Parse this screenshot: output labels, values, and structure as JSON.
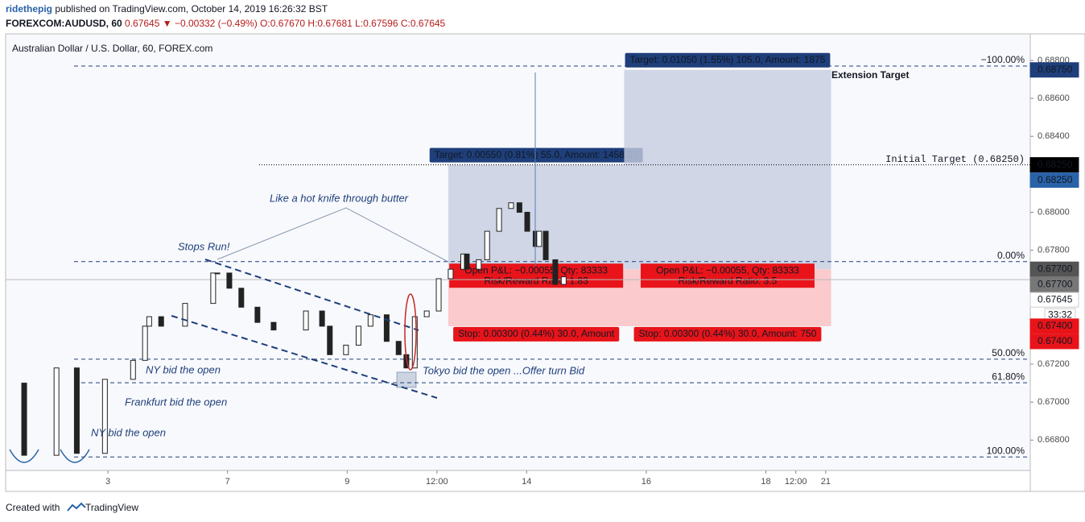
{
  "header": {
    "author": "ridethepig",
    "published": "published on TradingView.com, October 14, 2019 16:26:32 BST",
    "symbol": "FOREXCOM:AUDUSD, 60",
    "quote": "0.67645 ▼ −0.00332 (−0.49%)",
    "ohlc": "O:0.67670 H:0.67681 L:0.67596 C:0.67645"
  },
  "chart_data": {
    "type": "candlestick",
    "title": "Australian Dollar / U.S. Dollar, 60, FOREX.com",
    "x": [
      0.29,
      0.6,
      1.14,
      1.48,
      1.95,
      2.42,
      2.62,
      2.69,
      2.89,
      3.29,
      3.76,
      3.83,
      4.03,
      4.23,
      4.5,
      4.77,
      5.31,
      5.58,
      5.71,
      5.98,
      6.19,
      6.39,
      6.66,
      6.86,
      6.99,
      7.13,
      7.33,
      7.53,
      7.73,
      7.94,
      8.0,
      8.2,
      8.34,
      8.54,
      8.74,
      8.88,
      9.01,
      9.15,
      9.21,
      9.32,
      9.48,
      9.62
    ],
    "values": [
      0.671,
      0.6672,
      0.6718,
      0.6673,
      0.6712,
      0.6722,
      0.674,
      0.6745,
      0.674,
      0.6752,
      0.6768,
      0.6768,
      0.676,
      0.675,
      0.6742,
      0.6738,
      0.6748,
      0.674,
      0.6725,
      0.673,
      0.674,
      0.6746,
      0.6732,
      0.6725,
      0.6718,
      0.6745,
      0.6748,
      0.6765,
      0.677,
      0.6778,
      0.677,
      0.6775,
      0.679,
      0.6802,
      0.6805,
      0.68,
      0.679,
      0.6782,
      0.679,
      0.6775,
      0.6762,
      0.6766
    ],
    "xlim": [
      0.29,
      17.42
    ],
    "ylim": [
      0.6664,
      0.6894
    ],
    "xticks": [
      {
        "value": 2,
        "label": "3"
      },
      {
        "value": 4,
        "label": "7"
      },
      {
        "value": 6,
        "label": "9"
      },
      {
        "value": 7.5,
        "label": "12:00"
      },
      {
        "value": 9,
        "label": "14"
      },
      {
        "value": 11,
        "label": "16"
      },
      {
        "value": 13,
        "label": "18"
      },
      {
        "value": 13.5,
        "label": "12:00"
      },
      {
        "value": 14,
        "label": "21"
      }
    ],
    "yticks": [
      {
        "value": 0.688,
        "label": "0.68800"
      },
      {
        "value": 0.686,
        "label": "0.68600"
      },
      {
        "value": 0.684,
        "label": "0.68400"
      },
      {
        "value": 0.68,
        "label": "0.68000"
      },
      {
        "value": 0.678,
        "label": "0.67800"
      },
      {
        "value": 0.672,
        "label": "0.67200"
      },
      {
        "value": 0.67,
        "label": "0.67000"
      },
      {
        "value": 0.668,
        "label": "0.66800"
      }
    ],
    "levels": [
      {
        "label": "−100.00%",
        "value": 0.6877
      },
      {
        "label": "0.00%",
        "value": 0.6774
      },
      {
        "label": "50.00%",
        "value": 0.67226
      },
      {
        "label": "61.80%",
        "value": 0.67102
      },
      {
        "label": "100.00%",
        "value": 0.66711
      }
    ],
    "initial_target": {
      "label": "Initial Target (0.68250)",
      "value": 0.6825
    },
    "last_price": 0.67645,
    "positions": [
      {
        "start": 7.69,
        "end": 10.63,
        "entry": 0.677,
        "target": 0.6825,
        "stop": 0.674,
        "target_label": "Target: 0.00550 (0.81%) 55.0, Amount: 1458.33",
        "pl_label": "Open P&L: −0.00055, Qty: 83333",
        "rr_label": "Risk/Reward Ratio: 1.83",
        "stop_label": "Stop: 0.00300 (0.44%) 30.0, Amount"
      },
      {
        "start": 10.63,
        "end": 14.09,
        "entry": 0.677,
        "target": 0.6875,
        "stop": 0.674,
        "target_label": "Target: 0.01050 (1.55%) 105.0, Amount: 1875",
        "pl_label": "Open P&L: −0.00055, Qty: 83333",
        "rr_label": "Risk/Reward Ratio: 3.5",
        "stop_label": "Stop: 0.00300 (0.44%) 30.0, Amount: 750"
      }
    ],
    "price_badges": [
      {
        "value": 0.6875,
        "label": "0.68750",
        "color": "#1e3f7a"
      },
      {
        "value": 0.6825,
        "label": "0.68250",
        "color": "#000000"
      },
      {
        "value": 0.6825,
        "label": "0.68250",
        "color": "#2962a8"
      },
      {
        "value": 0.677,
        "label": "0.67700",
        "color": "#555555"
      },
      {
        "value": 0.677,
        "label": "0.67700",
        "color": "#777777"
      },
      {
        "value": 0.67645,
        "label": "0.67645",
        "color": "#ffffff"
      },
      {
        "value": 0.674,
        "label": "0.67400",
        "color": "#e8141a"
      },
      {
        "value": 0.674,
        "label": "0.67400",
        "color": "#e8141a"
      }
    ],
    "countdown": "33:32",
    "annotations": [
      "Extension Target",
      "Stops Run!",
      "Like a hot knife through butter",
      "NY bid the open",
      "Frankfurt bid the open",
      "NY bid the open",
      "Tokyo bid the open ...Offer turn Bid"
    ]
  },
  "footer": {
    "text": "Created with",
    "brand": "TradingView"
  }
}
